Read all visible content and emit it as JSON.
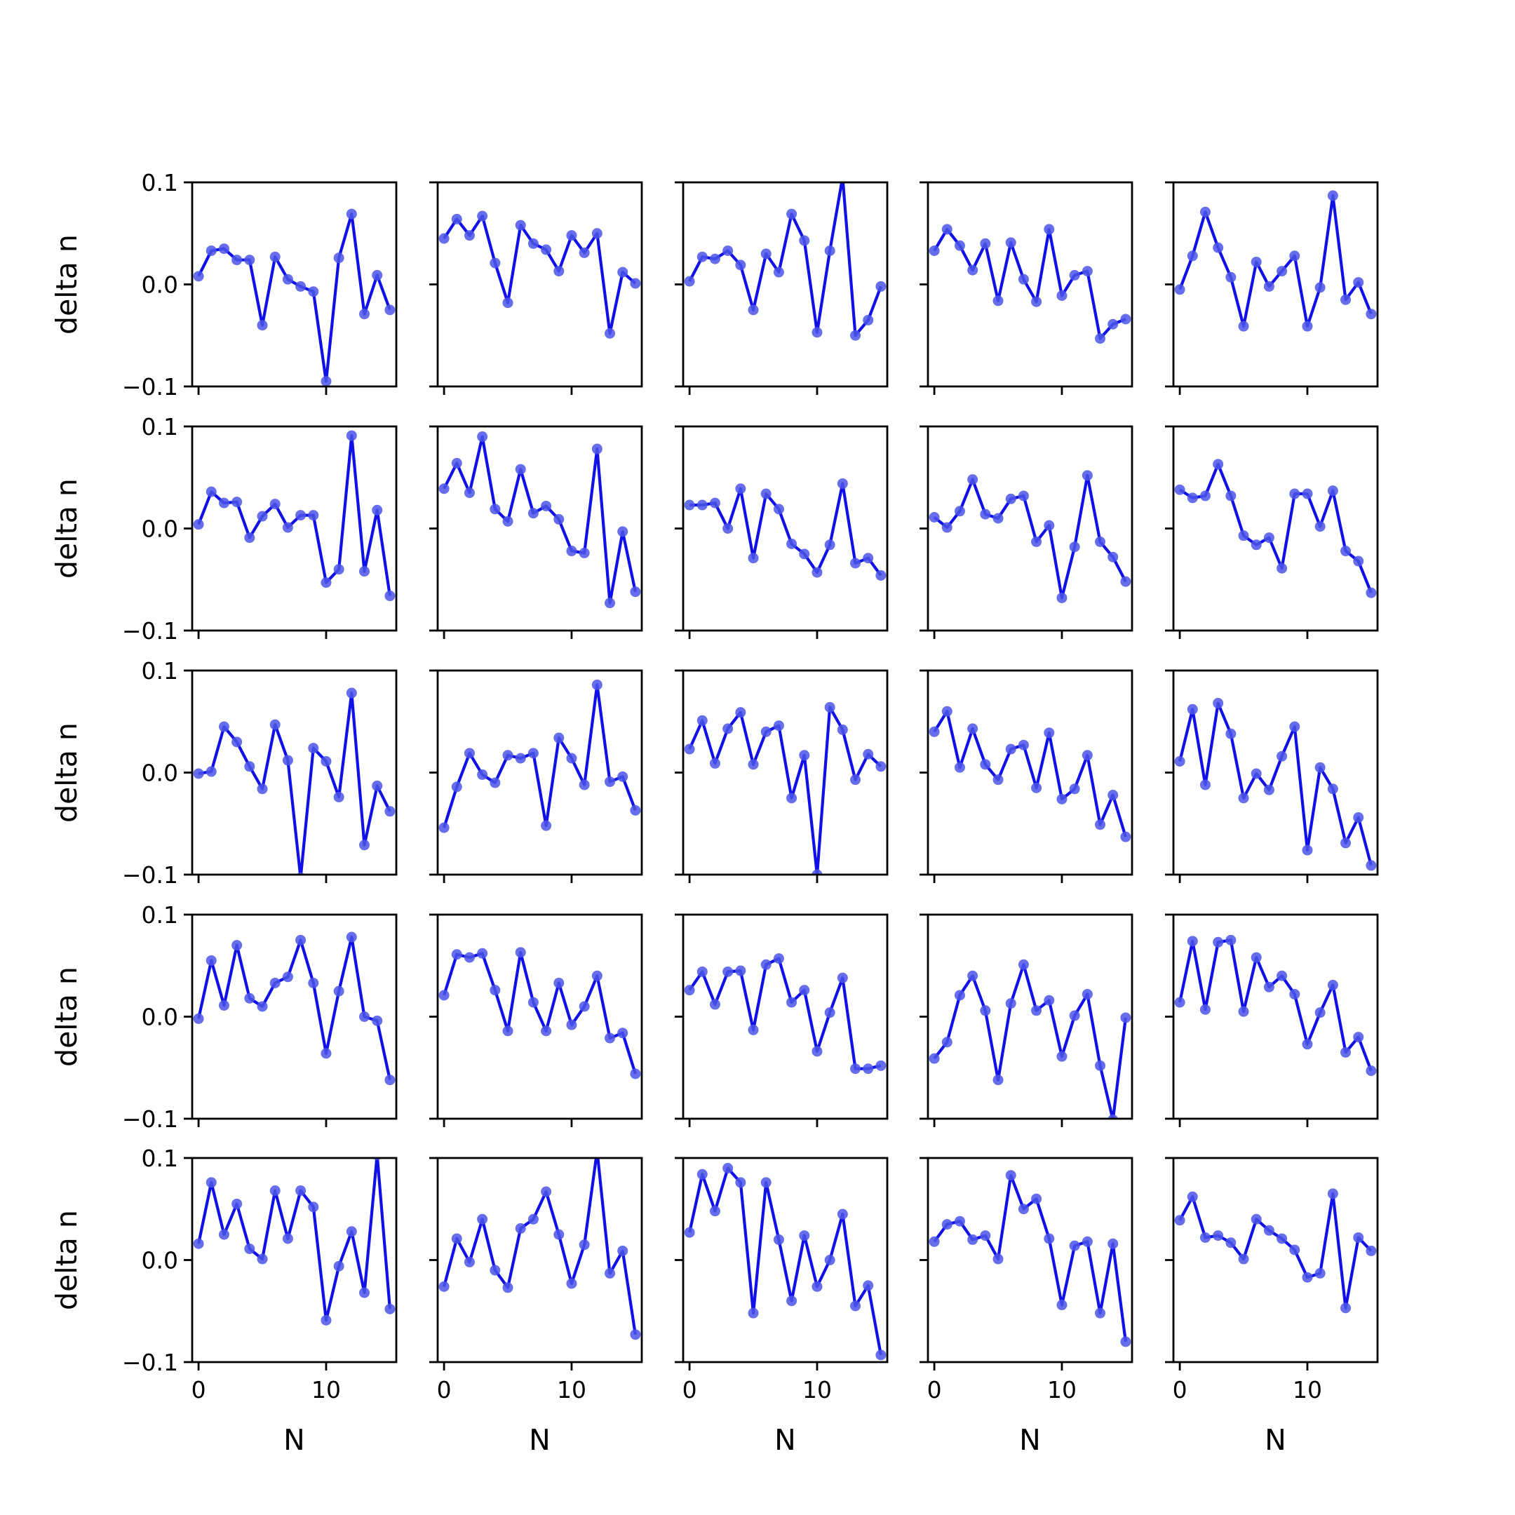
{
  "chart_data": {
    "type": "line",
    "layout": "5x5 small multiples",
    "xlabel": "N",
    "ylabel": "delta n",
    "ylim": [
      -0.1,
      0.1
    ],
    "xlim": [
      -0.5,
      15.5
    ],
    "yticks": [
      "0.1",
      "0.0",
      "−0.1"
    ],
    "ytick_values": [
      0.1,
      0.0,
      -0.1
    ],
    "xticks": [
      "0",
      "10"
    ],
    "xtick_values": [
      0,
      10
    ],
    "grid": false,
    "line_color": "#1010e8",
    "marker_color": "#4b55e8",
    "x": [
      0,
      1,
      2,
      3,
      4,
      5,
      6,
      7,
      8,
      9,
      10,
      11,
      12,
      13,
      14,
      15
    ],
    "panels": [
      {
        "values": [
          0.008,
          0.033,
          0.035,
          0.024,
          0.024,
          -0.04,
          0.027,
          0.005,
          -0.002,
          -0.007,
          -0.095,
          0.026,
          0.069,
          -0.029,
          0.009,
          -0.025
        ]
      },
      {
        "values": [
          0.045,
          0.064,
          0.048,
          0.067,
          0.021,
          -0.018,
          0.058,
          0.04,
          0.034,
          0.013,
          0.048,
          0.031,
          0.05,
          -0.048,
          0.012,
          0.001
        ]
      },
      {
        "values": [
          0.003,
          0.027,
          0.025,
          0.033,
          0.019,
          -0.025,
          0.03,
          0.012,
          0.069,
          0.043,
          -0.047,
          0.033,
          0.105,
          -0.05,
          -0.035,
          -0.002
        ]
      },
      {
        "values": [
          0.033,
          0.054,
          0.038,
          0.014,
          0.04,
          -0.016,
          0.041,
          0.005,
          -0.017,
          0.054,
          -0.011,
          0.009,
          0.013,
          -0.053,
          -0.039,
          -0.034
        ]
      },
      {
        "values": [
          -0.005,
          0.028,
          0.071,
          0.036,
          0.007,
          -0.041,
          0.022,
          -0.002,
          0.013,
          0.028,
          -0.041,
          -0.003,
          0.087,
          -0.015,
          0.002,
          -0.029
        ]
      },
      {
        "values": [
          0.004,
          0.036,
          0.025,
          0.026,
          -0.009,
          0.012,
          0.024,
          0.001,
          0.013,
          0.013,
          -0.053,
          -0.04,
          0.091,
          -0.042,
          0.018,
          -0.066
        ]
      },
      {
        "values": [
          0.039,
          0.064,
          0.035,
          0.09,
          0.019,
          0.007,
          0.058,
          0.015,
          0.022,
          0.009,
          -0.022,
          -0.024,
          0.078,
          -0.073,
          -0.003,
          -0.062
        ]
      },
      {
        "values": [
          0.023,
          0.023,
          0.025,
          0.0,
          0.039,
          -0.029,
          0.034,
          0.019,
          -0.015,
          -0.025,
          -0.043,
          -0.016,
          0.044,
          -0.034,
          -0.029,
          -0.046
        ]
      },
      {
        "values": [
          0.011,
          0.001,
          0.017,
          0.048,
          0.014,
          0.01,
          0.029,
          0.032,
          -0.013,
          0.003,
          -0.068,
          -0.018,
          0.052,
          -0.013,
          -0.028,
          -0.052
        ]
      },
      {
        "values": [
          0.038,
          0.03,
          0.032,
          0.063,
          0.032,
          -0.007,
          -0.016,
          -0.009,
          -0.039,
          0.034,
          0.034,
          0.002,
          0.037,
          -0.022,
          -0.032,
          -0.063
        ]
      },
      {
        "values": [
          -0.001,
          0.001,
          0.045,
          0.03,
          0.006,
          -0.016,
          0.047,
          0.012,
          -0.103,
          0.024,
          0.011,
          -0.024,
          0.078,
          -0.071,
          -0.013,
          -0.038
        ]
      },
      {
        "values": [
          -0.054,
          -0.014,
          0.019,
          -0.002,
          -0.01,
          0.017,
          0.014,
          0.019,
          -0.052,
          0.034,
          0.014,
          -0.012,
          0.086,
          -0.009,
          -0.004,
          -0.037
        ]
      },
      {
        "values": [
          0.023,
          0.051,
          0.009,
          0.043,
          0.059,
          0.008,
          0.04,
          0.046,
          -0.025,
          0.017,
          -0.1,
          0.064,
          0.042,
          -0.007,
          0.018,
          0.006
        ]
      },
      {
        "values": [
          0.04,
          0.06,
          0.005,
          0.043,
          0.008,
          -0.007,
          0.023,
          0.027,
          -0.015,
          0.039,
          -0.026,
          -0.016,
          0.017,
          -0.051,
          -0.022,
          -0.063
        ]
      },
      {
        "values": [
          0.011,
          0.062,
          -0.012,
          0.068,
          0.038,
          -0.025,
          -0.001,
          -0.017,
          0.016,
          0.045,
          -0.076,
          0.005,
          -0.016,
          -0.069,
          -0.044,
          -0.091
        ]
      },
      {
        "values": [
          -0.002,
          0.055,
          0.011,
          0.07,
          0.018,
          0.01,
          0.033,
          0.039,
          0.075,
          0.033,
          -0.036,
          0.025,
          0.078,
          0.0,
          -0.004,
          -0.062
        ]
      },
      {
        "values": [
          0.021,
          0.061,
          0.058,
          0.062,
          0.026,
          -0.014,
          0.063,
          0.014,
          -0.014,
          0.033,
          -0.008,
          0.01,
          0.04,
          -0.021,
          -0.016,
          -0.056
        ]
      },
      {
        "values": [
          0.026,
          0.044,
          0.012,
          0.044,
          0.045,
          -0.013,
          0.051,
          0.057,
          0.014,
          0.026,
          -0.034,
          0.004,
          0.038,
          -0.051,
          -0.051,
          -0.048
        ]
      },
      {
        "values": [
          -0.041,
          -0.025,
          0.021,
          0.04,
          0.006,
          -0.062,
          0.013,
          0.051,
          0.006,
          0.016,
          -0.039,
          0.001,
          0.022,
          -0.048,
          -0.101,
          -0.001
        ]
      },
      {
        "values": [
          0.014,
          0.074,
          0.007,
          0.073,
          0.075,
          0.005,
          0.058,
          0.029,
          0.04,
          0.022,
          -0.027,
          0.004,
          0.031,
          -0.035,
          -0.02,
          -0.053
        ]
      },
      {
        "values": [
          0.016,
          0.076,
          0.025,
          0.055,
          0.011,
          0.001,
          0.068,
          0.021,
          0.068,
          0.052,
          -0.059,
          -0.006,
          0.028,
          -0.032,
          0.103,
          -0.048
        ]
      },
      {
        "values": [
          -0.026,
          0.021,
          -0.002,
          0.04,
          -0.01,
          -0.027,
          0.031,
          0.04,
          0.067,
          0.025,
          -0.023,
          0.015,
          0.107,
          -0.013,
          0.009,
          -0.073
        ]
      },
      {
        "values": [
          0.027,
          0.084,
          0.048,
          0.09,
          0.076,
          -0.052,
          0.076,
          0.02,
          -0.04,
          0.024,
          -0.026,
          0.0,
          0.045,
          -0.045,
          -0.025,
          -0.093
        ]
      },
      {
        "values": [
          0.018,
          0.035,
          0.038,
          0.02,
          0.024,
          0.001,
          0.083,
          0.05,
          0.06,
          0.021,
          -0.044,
          0.014,
          0.018,
          -0.052,
          0.016,
          -0.08
        ]
      },
      {
        "values": [
          0.039,
          0.062,
          0.022,
          0.024,
          0.017,
          0.001,
          0.04,
          0.029,
          0.021,
          0.01,
          -0.017,
          -0.013,
          0.065,
          -0.047,
          0.022,
          0.009
        ]
      }
    ]
  }
}
